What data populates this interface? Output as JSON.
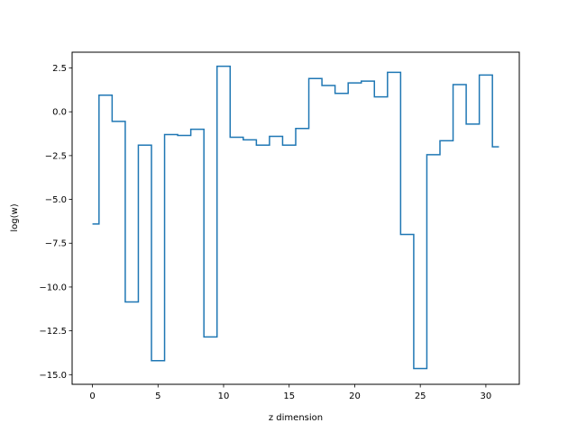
{
  "chart_data": {
    "type": "line",
    "drawstyle": "steps-mid",
    "xlabel": "z dimension",
    "ylabel": "log(w)",
    "xlim": [
      -1.55,
      32.55
    ],
    "ylim": [
      -15.55,
      3.4
    ],
    "xticks": [
      0,
      5,
      10,
      15,
      20,
      25,
      30
    ],
    "yticks": [
      2.5,
      0.0,
      -2.5,
      -5.0,
      -7.5,
      -10.0,
      -12.5,
      -15.0
    ],
    "ytick_labels": [
      "2.5",
      "0.0",
      "−2.5",
      "−5.0",
      "−7.5",
      "−10.0",
      "−12.5",
      "−15.0"
    ],
    "grid": false,
    "series": [
      {
        "color": "#1f77b4",
        "x": [
          0,
          1,
          2,
          3,
          4,
          5,
          6,
          7,
          8,
          9,
          10,
          11,
          12,
          13,
          14,
          15,
          16,
          17,
          18,
          19,
          20,
          21,
          22,
          23,
          24,
          25,
          26,
          27,
          28,
          29,
          30,
          31
        ],
        "values": [
          -6.4,
          0.95,
          -0.55,
          -10.85,
          -1.9,
          -14.2,
          -1.3,
          -1.35,
          -1.0,
          -12.85,
          2.6,
          -1.45,
          -1.6,
          -1.9,
          -1.4,
          -1.9,
          -0.95,
          1.9,
          1.5,
          1.05,
          1.65,
          1.75,
          0.85,
          2.25,
          -7.0,
          -14.65,
          -2.45,
          -1.65,
          1.55,
          -0.7,
          2.1,
          -2.0
        ]
      }
    ]
  }
}
